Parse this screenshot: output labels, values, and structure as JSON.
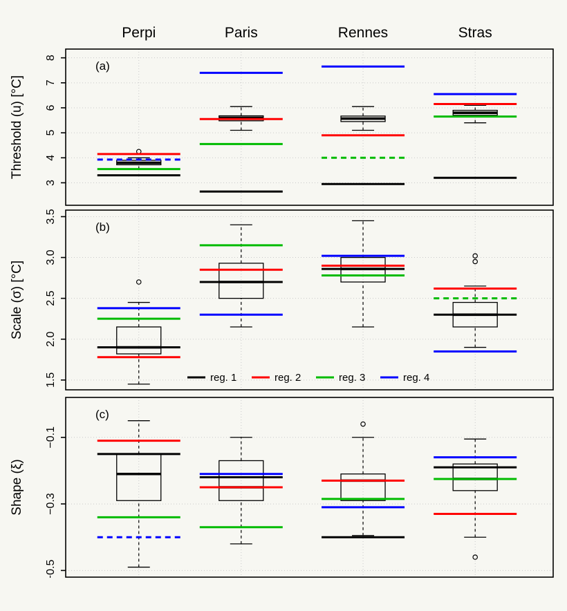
{
  "figure": {
    "background": "#f7f7f2"
  },
  "header": {
    "cities": [
      "Perpi",
      "Paris",
      "Rennes",
      "Stras"
    ]
  },
  "legend": {
    "items": [
      {
        "label": "reg. 1",
        "color": "#000000"
      },
      {
        "label": "reg. 2",
        "color": "#ff0000"
      },
      {
        "label": "reg. 3",
        "color": "#00bb00"
      },
      {
        "label": "reg. 4",
        "color": "#0000ff"
      }
    ]
  },
  "chart_data": {
    "type": "boxplot",
    "grid": true,
    "cities": [
      "Perpi",
      "Paris",
      "Rennes",
      "Stras"
    ],
    "series_colors": {
      "reg1": "#000000",
      "reg2": "#ff0000",
      "reg3": "#00bb00",
      "reg4": "#0000ff"
    },
    "panels": [
      {
        "id": "a",
        "tag": "(a)",
        "ylabel": "Threshold (u) [°C]",
        "ylim": [
          2.1,
          8.35
        ],
        "yticks": [
          3,
          4,
          5,
          6,
          7,
          8
        ],
        "ytick_labels": [
          "3",
          "4",
          "5",
          "6",
          "7",
          "8"
        ],
        "groups": [
          {
            "city": "Perpi",
            "box": {
              "whislo": 3.55,
              "q1": 3.72,
              "med": 3.8,
              "q3": 3.9,
              "whishi": 4.0,
              "outliers": [
                4.25
              ]
            },
            "reg": [
              {
                "name": "reg1",
                "value": 3.3
              },
              {
                "name": "reg2",
                "value": 4.15
              },
              {
                "name": "reg3",
                "value": 3.55
              },
              {
                "name": "reg4",
                "value": 3.93,
                "dashed": true
              }
            ]
          },
          {
            "city": "Paris",
            "box": {
              "whislo": 5.1,
              "q1": 5.48,
              "med": 5.6,
              "q3": 5.68,
              "whishi": 6.05,
              "outliers": []
            },
            "reg": [
              {
                "name": "reg1",
                "value": 2.65
              },
              {
                "name": "reg2",
                "value": 5.55
              },
              {
                "name": "reg3",
                "value": 4.55
              },
              {
                "name": "reg4",
                "value": 7.4
              }
            ]
          },
          {
            "city": "Rennes",
            "box": {
              "whislo": 5.1,
              "q1": 5.45,
              "med": 5.57,
              "q3": 5.67,
              "whishi": 6.05,
              "outliers": []
            },
            "reg": [
              {
                "name": "reg1",
                "value": 2.95
              },
              {
                "name": "reg2",
                "value": 4.9
              },
              {
                "name": "reg3",
                "value": 4.0,
                "dashed": true
              },
              {
                "name": "reg4",
                "value": 7.65
              }
            ]
          },
          {
            "city": "Stras",
            "box": {
              "whislo": 5.4,
              "q1": 5.7,
              "med": 5.8,
              "q3": 5.9,
              "whishi": 6.1,
              "outliers": []
            },
            "reg": [
              {
                "name": "reg1",
                "value": 3.2
              },
              {
                "name": "reg2",
                "value": 6.15
              },
              {
                "name": "reg3",
                "value": 5.65
              },
              {
                "name": "reg4",
                "value": 6.55
              }
            ]
          }
        ]
      },
      {
        "id": "b",
        "tag": "(b)",
        "ylabel": "Scale (σ) [°C]",
        "ylim": [
          1.38,
          3.58
        ],
        "yticks": [
          1.5,
          2.0,
          2.5,
          3.0,
          3.5
        ],
        "ytick_labels": [
          "1.5",
          "2.0",
          "2.5",
          "3.0",
          "3.5"
        ],
        "show_legend": true,
        "groups": [
          {
            "city": "Perpi",
            "box": {
              "whislo": 1.45,
              "q1": 1.82,
              "med": 1.9,
              "q3": 2.15,
              "whishi": 2.45,
              "outliers": [
                2.7
              ]
            },
            "reg": [
              {
                "name": "reg1",
                "value": 1.9
              },
              {
                "name": "reg2",
                "value": 1.78
              },
              {
                "name": "reg3",
                "value": 2.25
              },
              {
                "name": "reg4",
                "value": 2.38
              }
            ]
          },
          {
            "city": "Paris",
            "box": {
              "whislo": 2.15,
              "q1": 2.5,
              "med": 2.7,
              "q3": 2.93,
              "whishi": 3.4,
              "outliers": []
            },
            "reg": [
              {
                "name": "reg1",
                "value": 2.7
              },
              {
                "name": "reg2",
                "value": 2.85
              },
              {
                "name": "reg3",
                "value": 3.15
              },
              {
                "name": "reg4",
                "value": 2.3
              }
            ]
          },
          {
            "city": "Rennes",
            "box": {
              "whislo": 2.15,
              "q1": 2.7,
              "med": 2.86,
              "q3": 3.0,
              "whishi": 3.45,
              "outliers": []
            },
            "reg": [
              {
                "name": "reg1",
                "value": 2.86
              },
              {
                "name": "reg2",
                "value": 2.9
              },
              {
                "name": "reg3",
                "value": 2.78
              },
              {
                "name": "reg4",
                "value": 3.02
              }
            ]
          },
          {
            "city": "Stras",
            "box": {
              "whislo": 1.9,
              "q1": 2.15,
              "med": 2.3,
              "q3": 2.45,
              "whishi": 2.65,
              "outliers": [
                2.95,
                3.02
              ]
            },
            "reg": [
              {
                "name": "reg1",
                "value": 2.3
              },
              {
                "name": "reg2",
                "value": 2.62
              },
              {
                "name": "reg3",
                "value": 2.5,
                "dashed": true
              },
              {
                "name": "reg4",
                "value": 1.85
              }
            ]
          }
        ]
      },
      {
        "id": "c",
        "tag": "(c)",
        "ylabel": "Shape (ξ)",
        "ylim": [
          -0.52,
          0.02
        ],
        "yticks": [
          -0.1,
          -0.3,
          -0.5
        ],
        "ytick_labels": [
          "−0.1",
          "−0.3",
          "−0.5"
        ],
        "groups": [
          {
            "city": "Perpi",
            "box": {
              "whislo": -0.49,
              "q1": -0.29,
              "med": -0.21,
              "q3": -0.15,
              "whishi": -0.05,
              "outliers": []
            },
            "reg": [
              {
                "name": "reg1",
                "value": -0.15
              },
              {
                "name": "reg2",
                "value": -0.11
              },
              {
                "name": "reg3",
                "value": -0.34
              },
              {
                "name": "reg4",
                "value": -0.4,
                "dashed": true
              }
            ]
          },
          {
            "city": "Paris",
            "box": {
              "whislo": -0.42,
              "q1": -0.29,
              "med": -0.25,
              "q3": -0.17,
              "whishi": -0.1,
              "outliers": []
            },
            "reg": [
              {
                "name": "reg1",
                "value": -0.22
              },
              {
                "name": "reg2",
                "value": -0.25
              },
              {
                "name": "reg3",
                "value": -0.37
              },
              {
                "name": "reg4",
                "value": -0.21
              }
            ]
          },
          {
            "city": "Rennes",
            "box": {
              "whislo": -0.395,
              "q1": -0.29,
              "med": -0.23,
              "q3": -0.21,
              "whishi": -0.1,
              "outliers": [
                -0.06
              ]
            },
            "reg": [
              {
                "name": "reg1",
                "value": -0.4
              },
              {
                "name": "reg2",
                "value": -0.23
              },
              {
                "name": "reg3",
                "value": -0.285
              },
              {
                "name": "reg4",
                "value": -0.31
              }
            ]
          },
          {
            "city": "Stras",
            "box": {
              "whislo": -0.4,
              "q1": -0.26,
              "med": -0.225,
              "q3": -0.18,
              "whishi": -0.105,
              "outliers": [
                -0.46
              ]
            },
            "reg": [
              {
                "name": "reg1",
                "value": -0.19
              },
              {
                "name": "reg2",
                "value": -0.33
              },
              {
                "name": "reg3",
                "value": -0.225
              },
              {
                "name": "reg4",
                "value": -0.16
              }
            ]
          }
        ]
      }
    ]
  }
}
